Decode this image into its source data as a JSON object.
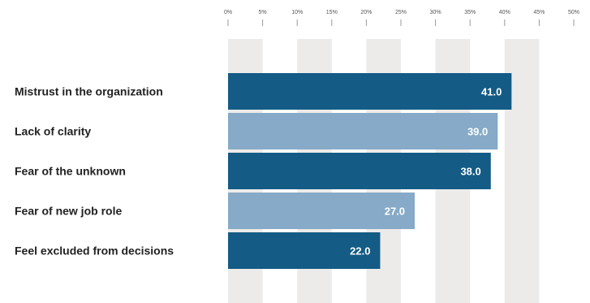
{
  "chart_data": {
    "type": "bar",
    "orientation": "horizontal",
    "categories": [
      "Mistrust in the organization",
      "Lack of clarity",
      "Fear of the unknown",
      "Fear of new job role",
      "Feel excluded from decisions"
    ],
    "values": [
      41.0,
      39.0,
      38.0,
      27.0,
      22.0
    ],
    "value_labels": [
      "41.0",
      "39.0",
      "38.0",
      "27.0",
      "22.0"
    ],
    "xlim": [
      0,
      50
    ],
    "xticks": [
      "0%",
      "5%",
      "10%",
      "15%",
      "20%",
      "25%",
      "30%",
      "35%",
      "40%",
      "45%",
      "50%"
    ],
    "grid": "alternating vertical bands",
    "colors": {
      "bar_dark": "#145b85",
      "bar_light": "#86aac7",
      "band": "#ecebea",
      "label_text": "#222222"
    },
    "bar_color_sequence": [
      "bar_dark",
      "bar_light",
      "bar_dark",
      "bar_light",
      "bar_dark"
    ],
    "title": "",
    "xlabel": "",
    "ylabel": ""
  }
}
